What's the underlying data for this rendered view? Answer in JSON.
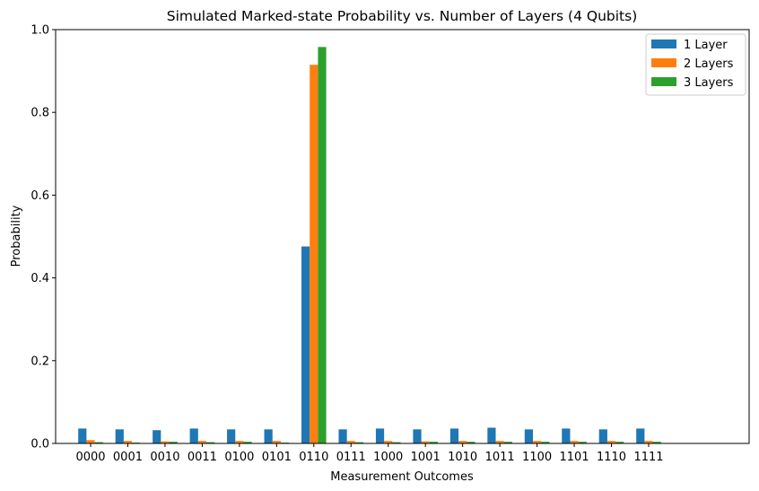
{
  "chart_data": {
    "type": "bar",
    "title": "Simulated Marked-state Probability vs. Number of Layers (4 Qubits)",
    "xlabel": "Measurement Outcomes",
    "ylabel": "Probability",
    "ylim": [
      0,
      1.0
    ],
    "yticks": [
      "0.0",
      "0.2",
      "0.4",
      "0.6",
      "0.8",
      "1.0"
    ],
    "legend_position": "top-right",
    "grid": false,
    "categories": [
      "0000",
      "0001",
      "0010",
      "0011",
      "0100",
      "0101",
      "0110",
      "0111",
      "1000",
      "1001",
      "1010",
      "1011",
      "1100",
      "1101",
      "1110",
      "1111"
    ],
    "series": [
      {
        "name": "1 Layer",
        "color": "#1f77b4",
        "values": [
          0.036,
          0.034,
          0.032,
          0.036,
          0.034,
          0.034,
          0.476,
          0.034,
          0.036,
          0.034,
          0.036,
          0.038,
          0.034,
          0.036,
          0.034,
          0.036
        ]
      },
      {
        "name": "2 Layers",
        "color": "#ff7f0e",
        "values": [
          0.008,
          0.006,
          0.005,
          0.006,
          0.006,
          0.006,
          0.915,
          0.006,
          0.006,
          0.005,
          0.006,
          0.006,
          0.006,
          0.006,
          0.006,
          0.006
        ]
      },
      {
        "name": "3 Layers",
        "color": "#2ca02c",
        "values": [
          0.003,
          0.002,
          0.004,
          0.003,
          0.004,
          0.002,
          0.958,
          0.003,
          0.003,
          0.004,
          0.004,
          0.004,
          0.004,
          0.004,
          0.004,
          0.004
        ]
      }
    ]
  }
}
